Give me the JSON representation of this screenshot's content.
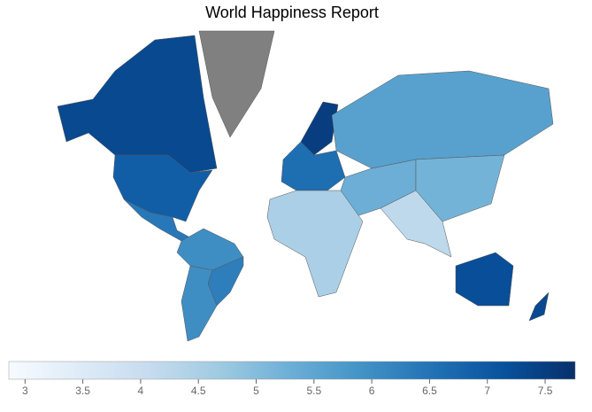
{
  "chart_data": {
    "type": "choropleth",
    "title": "World Happiness Report",
    "values": [
      7.3,
      6.9,
      6.4,
      null,
      6.0,
      6.3,
      6.0,
      7.5,
      6.6,
      5.6,
      5.3,
      5.2,
      4.2,
      4.5,
      7.2,
      7.3
    ],
    "colorscale": [
      "#f7fbff",
      "#deebf7",
      "#c6dbef",
      "#9ecae1",
      "#6baed6",
      "#4292c6",
      "#2171b5",
      "#08519c",
      "#08306b"
    ],
    "missing_color": "#808080",
    "zlim": [
      2.86,
      7.76
    ],
    "zticks": [
      3,
      3.5,
      4,
      4.5,
      5,
      5.5,
      6,
      6.5,
      7,
      7.5
    ]
  }
}
